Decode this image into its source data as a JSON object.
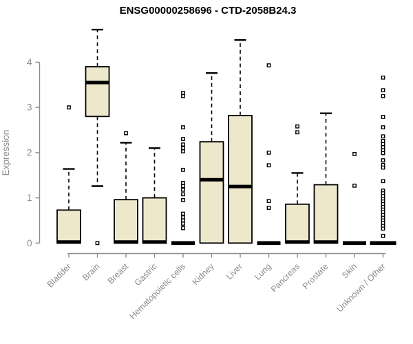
{
  "chart_data": {
    "type": "boxplot",
    "title": "ENSG00000258696 - CTD-2058B24.3",
    "xlabel": "",
    "ylabel": "Expression",
    "ylim": [
      0,
      4.75
    ],
    "yticks": [
      0,
      1,
      2,
      3,
      4
    ],
    "grid": false,
    "legend": "none",
    "categories": [
      {
        "label": "Bladder",
        "q1": 0,
        "median": 0,
        "q3": 0.73,
        "whisker_low": 0,
        "whisker_high": 1.64,
        "outliers": [
          3.0
        ]
      },
      {
        "label": "Brain",
        "q1": 2.8,
        "median": 3.55,
        "q3": 3.9,
        "whisker_low": 1.26,
        "whisker_high": 4.72,
        "outliers": [
          0
        ]
      },
      {
        "label": "Breast",
        "q1": 0,
        "median": 0,
        "q3": 0.96,
        "whisker_low": 0,
        "whisker_high": 2.22,
        "outliers": [
          2.43
        ]
      },
      {
        "label": "Gastric",
        "q1": 0,
        "median": 0,
        "q3": 1.0,
        "whisker_low": 0,
        "whisker_high": 2.1,
        "outliers": []
      },
      {
        "label": "Hematopoietic cells",
        "q1": 0,
        "median": 0,
        "q3": 0,
        "whisker_low": 0,
        "whisker_high": 0,
        "outliers": [
          3.32,
          3.25,
          2.56,
          2.3,
          2.18,
          2.1,
          2.03,
          1.62,
          1.33,
          1.26,
          1.18,
          1.08,
          0.95,
          0.65,
          0.57,
          0.5,
          0.43,
          0.33
        ]
      },
      {
        "label": "Kidney",
        "q1": 0,
        "median": 1.4,
        "q3": 2.24,
        "whisker_low": 0,
        "whisker_high": 3.76,
        "outliers": []
      },
      {
        "label": "Liver",
        "q1": 0,
        "median": 1.25,
        "q3": 2.82,
        "whisker_low": 0,
        "whisker_high": 4.49,
        "outliers": []
      },
      {
        "label": "Lung",
        "q1": 0,
        "median": 0,
        "q3": 0,
        "whisker_low": 0,
        "whisker_high": 0,
        "outliers": [
          3.93,
          2.0,
          1.72,
          0.93,
          0.78
        ]
      },
      {
        "label": "Pancreas",
        "q1": 0,
        "median": 0,
        "q3": 0.86,
        "whisker_low": 0,
        "whisker_high": 1.55,
        "outliers": [
          2.58,
          2.45
        ]
      },
      {
        "label": "Prostate",
        "q1": 0,
        "median": 0,
        "q3": 1.29,
        "whisker_low": 0,
        "whisker_high": 2.87,
        "outliers": []
      },
      {
        "label": "Skin",
        "q1": 0,
        "median": 0,
        "q3": 0,
        "whisker_low": 0,
        "whisker_high": 0,
        "outliers": [
          1.97,
          1.27
        ]
      },
      {
        "label": "Unknown / Other",
        "q1": 0,
        "median": 0,
        "q3": 0,
        "whisker_low": 0,
        "whisker_high": 0,
        "outliers": [
          3.66,
          3.38,
          3.25,
          2.79,
          2.56,
          2.36,
          2.26,
          2.19,
          2.12,
          2.05,
          1.99,
          1.83,
          1.73,
          1.67,
          1.37,
          1.16,
          1.1,
          1.04,
          0.98,
          0.92,
          0.86,
          0.8,
          0.74,
          0.68,
          0.62,
          0.56,
          0.5,
          0.44,
          0.38,
          0.32,
          0.16
        ]
      }
    ],
    "colors": {
      "background": "#ffffff",
      "box_fill": "#ede7cc",
      "box_stroke": "#000000",
      "outlier_fill": "#ffffff",
      "axis": "#8c8c8c",
      "axis_text": "#8c8c8c",
      "title_text": "#000000"
    }
  }
}
